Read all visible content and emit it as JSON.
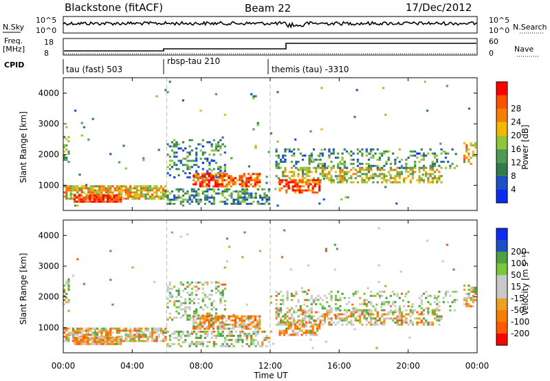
{
  "header": {
    "station": "Blackstone (fitACF)",
    "beam": "Beam 22",
    "date": "17/Dec/2012"
  },
  "noise_panel": {
    "left_label": "N.Sky",
    "left_ticks": [
      "10^5",
      "10^0"
    ],
    "right_label": "N.Search",
    "right_ticks": [
      "10^5",
      "10^0"
    ]
  },
  "freq_panel": {
    "left_label_line1": "Freq.",
    "left_label_line2": "[MHz]",
    "left_ticks": [
      "18",
      "8"
    ],
    "right_label": "Nave",
    "right_ticks": [
      "60",
      "0"
    ]
  },
  "cpid": {
    "label": "CPID",
    "segments": [
      {
        "name": "tau (fast) 503",
        "start_hour": 0
      },
      {
        "name": "rbsp-tau 210",
        "start_hour": 6
      },
      {
        "name": "themis (tau) -3310",
        "start_hour": 12
      }
    ]
  },
  "colors": {
    "power_scale": [
      "#0b2cf0",
      "#1b50c8",
      "#2f7d4a",
      "#4e9a52",
      "#8ec53a",
      "#f0b800",
      "#f57f00",
      "#ff5000",
      "#ff0000"
    ],
    "velocity_scale": [
      "#ff0000",
      "#ff5a00",
      "#f57f00",
      "#f0a020",
      "#c8c8c8",
      "#c8c8c8",
      "#7ac83a",
      "#4ea040",
      "#1b50c8",
      "#0b2cf0"
    ]
  },
  "chart_data": [
    {
      "type": "heatmap",
      "name": "Power",
      "ylabel": "Slant Range [km]",
      "yticks": [
        1000,
        2000,
        3000,
        4000
      ],
      "ylim": [
        180,
        4500
      ],
      "colorbar_title": "Power [dB]",
      "colorbar_ticks": [
        4,
        8,
        12,
        16,
        20,
        24,
        28
      ],
      "dashed_lines_hours": [
        6,
        12
      ]
    },
    {
      "type": "heatmap",
      "name": "Velocity",
      "ylabel": "Slant Range [km]",
      "yticks": [
        1000,
        2000,
        3000,
        4000
      ],
      "ylim": [
        180,
        4500
      ],
      "colorbar_title": "Velocity [m s⁻¹]",
      "colorbar_ticks": [
        200,
        100,
        50,
        15,
        -15,
        -50,
        -100,
        -200
      ],
      "dashed_lines_hours": [
        6,
        12
      ]
    }
  ],
  "xaxis": {
    "ticks": [
      "00:00",
      "04:00",
      "08:00",
      "12:00",
      "16:00",
      "20:00",
      "00:00"
    ],
    "xlabel": "Time UT",
    "xlim_hours": [
      0,
      24
    ]
  }
}
